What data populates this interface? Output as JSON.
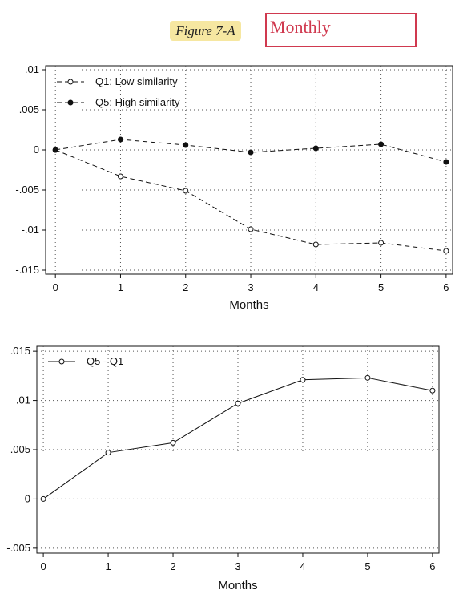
{
  "header": {
    "figure_label": "Figure 7-A",
    "frequency_label": "Monthly"
  },
  "chart_data": [
    {
      "type": "line",
      "x": [
        0,
        1,
        2,
        3,
        4,
        5,
        6
      ],
      "xticks": [
        "0",
        "1",
        "2",
        "3",
        "4",
        "5",
        "6"
      ],
      "yticks": [
        ".01",
        ".005",
        "0",
        "-.005",
        "-.01",
        "-.015"
      ],
      "ylim": [
        -0.0155,
        0.0105
      ],
      "xlim": [
        -0.15,
        6.1
      ],
      "xlabel": "Months",
      "ylabel": "",
      "grid": true,
      "legend_position": "top-left",
      "series": [
        {
          "name": "Q1: Low similarity",
          "marker": "hollow-circle",
          "dash": true,
          "values": [
            0,
            -0.0033,
            -0.0051,
            -0.0099,
            -0.0118,
            -0.0116,
            -0.0126
          ]
        },
        {
          "name": "Q5: High similarity",
          "marker": "filled-circle",
          "dash": true,
          "values": [
            0,
            0.0013,
            0.0006,
            -0.0003,
            0.0002,
            0.0007,
            -0.0015
          ]
        }
      ]
    },
    {
      "type": "line",
      "x": [
        0,
        1,
        2,
        3,
        4,
        5,
        6
      ],
      "xticks": [
        "0",
        "1",
        "2",
        "3",
        "4",
        "5",
        "6"
      ],
      "yticks": [
        ".015",
        ".01",
        ".005",
        "0",
        "-.005"
      ],
      "ylim": [
        -0.0055,
        0.0155
      ],
      "xlim": [
        -0.1,
        6.1
      ],
      "xlabel": "Months",
      "ylabel": "",
      "grid": true,
      "legend_position": "top-left",
      "series": [
        {
          "name": "Q5 - Q1",
          "marker": "hollow-circle",
          "dash": false,
          "values": [
            0,
            0.0047,
            0.0057,
            0.0097,
            0.0121,
            0.0123,
            0.011
          ]
        }
      ]
    }
  ]
}
